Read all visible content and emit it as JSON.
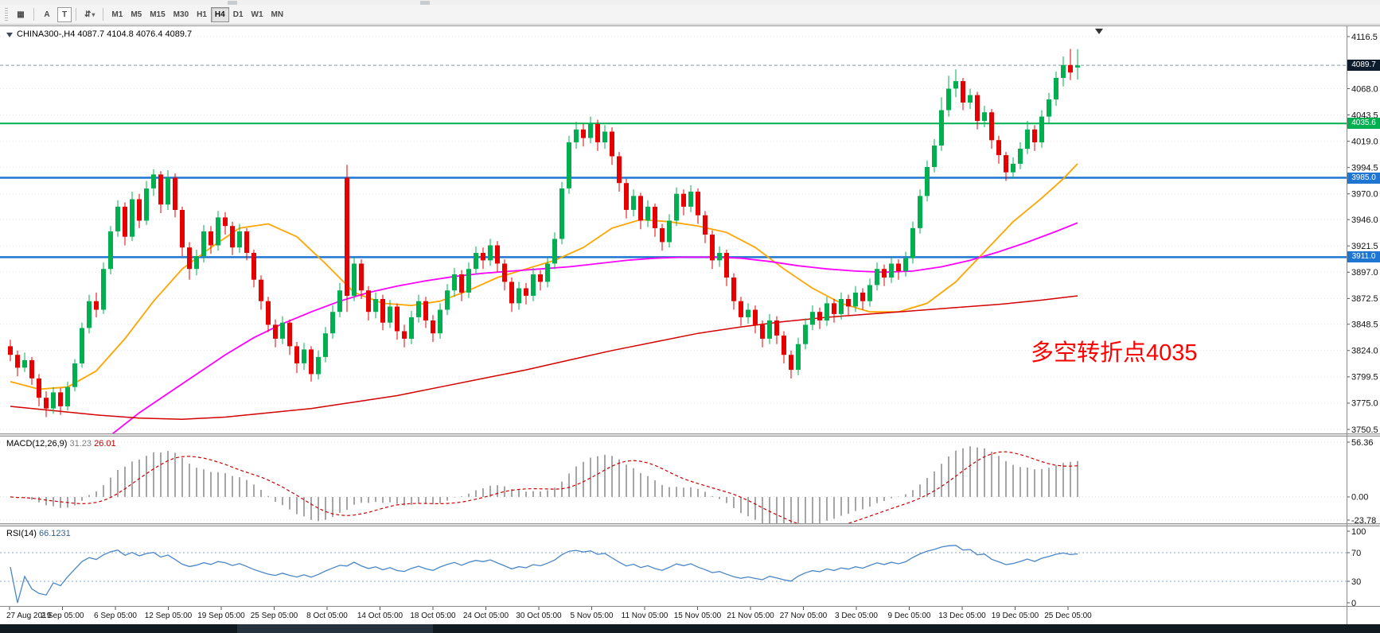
{
  "toolbar": {
    "tool_a": "A",
    "tool_t": "T",
    "timeframes": [
      "M1",
      "M5",
      "M15",
      "M30",
      "H1",
      "H4",
      "D1",
      "W1",
      "MN"
    ],
    "selected_timeframe": "H4"
  },
  "chart": {
    "symbol_period": "CHINA300-,H4",
    "ohlc": "4087.7 4104.8 4076.4 4089.7",
    "macd_name": "MACD(12,26,9)",
    "macd_main": "31.23",
    "macd_signal": "26.01",
    "rsi_name": "RSI(14)",
    "rsi_value": "66.1231",
    "badge_current": "4089.7",
    "badge_green": "4035.6",
    "badge_blue_upper": "3985.0",
    "badge_blue_lower": "3911.0",
    "annotation": "多空转折点4035"
  },
  "chart_data": {
    "type": "candlestick",
    "title": "CHINA300-,H4",
    "price_axis": {
      "ticks": [
        4116.5,
        4068.0,
        4043.5,
        4019.0,
        3994.5,
        3970.0,
        3946.0,
        3921.5,
        3897.0,
        3872.5,
        3848.5,
        3824.0,
        3799.5,
        3775.0,
        3750.5
      ],
      "current_price": 4089.7
    },
    "hlines": [
      {
        "price": 4035.6,
        "color": "#00b050",
        "width": 2,
        "name": "pivot-line-4035"
      },
      {
        "price": 3985.0,
        "color": "#1e76d2",
        "width": 2.5,
        "name": "level-line-3985"
      },
      {
        "price": 3911.0,
        "color": "#1e76d2",
        "width": 2.5,
        "name": "level-line-3911"
      }
    ],
    "colors": {
      "up": "#00b050",
      "down": "#e60000",
      "hist": "#a6a6a6",
      "signal": "#cc0000",
      "rsi": "#4a86c8",
      "rsi_level": "#88aacc",
      "grid": "#e6e6e6",
      "bid": "#8296a8"
    },
    "candles": [
      [
        3828,
        3834,
        3814,
        3820
      ],
      [
        3820,
        3824,
        3800,
        3808
      ],
      [
        3808,
        3822,
        3804,
        3815
      ],
      [
        3815,
        3818,
        3792,
        3798
      ],
      [
        3798,
        3802,
        3772,
        3780
      ],
      [
        3780,
        3786,
        3762,
        3770
      ],
      [
        3770,
        3790,
        3765,
        3785
      ],
      [
        3785,
        3789,
        3764,
        3772
      ],
      [
        3772,
        3795,
        3768,
        3790
      ],
      [
        3790,
        3816,
        3786,
        3812
      ],
      [
        3812,
        3850,
        3808,
        3845
      ],
      [
        3845,
        3876,
        3840,
        3870
      ],
      [
        3870,
        3878,
        3855,
        3862
      ],
      [
        3862,
        3906,
        3858,
        3900
      ],
      [
        3900,
        3940,
        3895,
        3935
      ],
      [
        3935,
        3964,
        3930,
        3958
      ],
      [
        3958,
        3962,
        3922,
        3930
      ],
      [
        3930,
        3972,
        3926,
        3965
      ],
      [
        3965,
        3970,
        3938,
        3945
      ],
      [
        3945,
        3982,
        3941,
        3975
      ],
      [
        3975,
        3993,
        3968,
        3988
      ],
      [
        3988,
        3991,
        3952,
        3960
      ],
      [
        3960,
        3992,
        3955,
        3985
      ],
      [
        3985,
        3989,
        3948,
        3955
      ],
      [
        3955,
        3958,
        3912,
        3920
      ],
      [
        3920,
        3925,
        3890,
        3900
      ],
      [
        3900,
        3918,
        3894,
        3912
      ],
      [
        3912,
        3941,
        3906,
        3935
      ],
      [
        3935,
        3940,
        3914,
        3922
      ],
      [
        3922,
        3954,
        3917,
        3948
      ],
      [
        3948,
        3953,
        3932,
        3940
      ],
      [
        3940,
        3944,
        3913,
        3920
      ],
      [
        3920,
        3942,
        3915,
        3935
      ],
      [
        3935,
        3938,
        3908,
        3915
      ],
      [
        3915,
        3918,
        3883,
        3890
      ],
      [
        3890,
        3894,
        3862,
        3870
      ],
      [
        3870,
        3874,
        3841,
        3848
      ],
      [
        3848,
        3853,
        3827,
        3835
      ],
      [
        3835,
        3856,
        3830,
        3850
      ],
      [
        3850,
        3853,
        3820,
        3828
      ],
      [
        3828,
        3832,
        3803,
        3812
      ],
      [
        3812,
        3831,
        3806,
        3825
      ],
      [
        3825,
        3828,
        3795,
        3802
      ],
      [
        3802,
        3824,
        3797,
        3818
      ],
      [
        3818,
        3846,
        3813,
        3840
      ],
      [
        3840,
        3866,
        3835,
        3860
      ],
      [
        3860,
        3887,
        3855,
        3880
      ],
      [
        3985,
        3997,
        3860,
        3875
      ],
      [
        3875,
        3911,
        3870,
        3905
      ],
      [
        3905,
        3909,
        3872,
        3880
      ],
      [
        3880,
        3884,
        3852,
        3860
      ],
      [
        3860,
        3878,
        3854,
        3872
      ],
      [
        3872,
        3876,
        3843,
        3850
      ],
      [
        3850,
        3871,
        3845,
        3865
      ],
      [
        3865,
        3868,
        3834,
        3842
      ],
      [
        3842,
        3848,
        3827,
        3835
      ],
      [
        3835,
        3861,
        3830,
        3855
      ],
      [
        3855,
        3876,
        3850,
        3870
      ],
      [
        3870,
        3874,
        3845,
        3852
      ],
      [
        3852,
        3857,
        3832,
        3840
      ],
      [
        3840,
        3868,
        3835,
        3862
      ],
      [
        3862,
        3886,
        3857,
        3880
      ],
      [
        3880,
        3901,
        3874,
        3895
      ],
      [
        3895,
        3899,
        3870,
        3878
      ],
      [
        3878,
        3906,
        3873,
        3900
      ],
      [
        3900,
        3921,
        3895,
        3915
      ],
      [
        3915,
        3920,
        3900,
        3908
      ],
      [
        3908,
        3928,
        3903,
        3922
      ],
      [
        3922,
        3926,
        3897,
        3905
      ],
      [
        3905,
        3909,
        3880,
        3888
      ],
      [
        3888,
        3892,
        3860,
        3868
      ],
      [
        3868,
        3888,
        3862,
        3882
      ],
      [
        3882,
        3887,
        3867,
        3875
      ],
      [
        3875,
        3901,
        3870,
        3895
      ],
      [
        3895,
        3899,
        3880,
        3888
      ],
      [
        3888,
        3911,
        3883,
        3905
      ],
      [
        3905,
        3934,
        3900,
        3928
      ],
      [
        3928,
        3981,
        3923,
        3975
      ],
      [
        3975,
        4024,
        3970,
        4018
      ],
      [
        4018,
        4037,
        4012,
        4030
      ],
      [
        4030,
        4035,
        4014,
        4022
      ],
      [
        4022,
        4042,
        4017,
        4035
      ],
      [
        4035,
        4039,
        4010,
        4018
      ],
      [
        4018,
        4034,
        4012,
        4028
      ],
      [
        4028,
        4032,
        3997,
        4005
      ],
      [
        4005,
        4009,
        3972,
        3980
      ],
      [
        3980,
        3984,
        3947,
        3955
      ],
      [
        3955,
        3974,
        3949,
        3968
      ],
      [
        3968,
        3971,
        3937,
        3945
      ],
      [
        3945,
        3964,
        3939,
        3958
      ],
      [
        3958,
        3961,
        3930,
        3938
      ],
      [
        3938,
        3942,
        3917,
        3925
      ],
      [
        3925,
        3951,
        3920,
        3945
      ],
      [
        3945,
        3976,
        3940,
        3970
      ],
      [
        3970,
        3974,
        3950,
        3958
      ],
      [
        3958,
        3978,
        3953,
        3972
      ],
      [
        3972,
        3975,
        3942,
        3950
      ],
      [
        3950,
        3954,
        3924,
        3932
      ],
      [
        3932,
        3936,
        3900,
        3908
      ],
      [
        3908,
        3921,
        3902,
        3915
      ],
      [
        3915,
        3918,
        3884,
        3892
      ],
      [
        3892,
        3896,
        3862,
        3870
      ],
      [
        3870,
        3874,
        3847,
        3855
      ],
      [
        3855,
        3868,
        3849,
        3862
      ],
      [
        3862,
        3866,
        3840,
        3848
      ],
      [
        3848,
        3852,
        3827,
        3835
      ],
      [
        3835,
        3858,
        3830,
        3852
      ],
      [
        3852,
        3856,
        3830,
        3838
      ],
      [
        3838,
        3842,
        3812,
        3820
      ],
      [
        3820,
        3824,
        3798,
        3806
      ],
      [
        3806,
        3836,
        3801,
        3830
      ],
      [
        3830,
        3854,
        3825,
        3848
      ],
      [
        3848,
        3866,
        3843,
        3860
      ],
      [
        3860,
        3864,
        3844,
        3852
      ],
      [
        3852,
        3874,
        3847,
        3868
      ],
      [
        3868,
        3872,
        3850,
        3858
      ],
      [
        3858,
        3878,
        3853,
        3872
      ],
      [
        3872,
        3876,
        3857,
        3865
      ],
      [
        3865,
        3884,
        3860,
        3878
      ],
      [
        3878,
        3882,
        3862,
        3870
      ],
      [
        3870,
        3891,
        3865,
        3885
      ],
      [
        3885,
        3906,
        3880,
        3900
      ],
      [
        3900,
        3904,
        3884,
        3892
      ],
      [
        3892,
        3911,
        3887,
        3905
      ],
      [
        3905,
        3909,
        3890,
        3898
      ],
      [
        3898,
        3916,
        3893,
        3910
      ],
      [
        3910,
        3944,
        3905,
        3938
      ],
      [
        3938,
        3974,
        3933,
        3968
      ],
      [
        3968,
        4001,
        3963,
        3995
      ],
      [
        3995,
        4021,
        3990,
        4015
      ],
      [
        4015,
        4060,
        4010,
        4048
      ],
      [
        4048,
        4080,
        4042,
        4068
      ],
      [
        4068,
        4086,
        4060,
        4075
      ],
      [
        4075,
        4078,
        4048,
        4055
      ],
      [
        4055,
        4068,
        4049,
        4062
      ],
      [
        4062,
        4065,
        4030,
        4038
      ],
      [
        4038,
        4052,
        4032,
        4046
      ],
      [
        4046,
        4049,
        4012,
        4020
      ],
      [
        4020,
        4024,
        3998,
        4006
      ],
      [
        4006,
        4009,
        3982,
        3990
      ],
      [
        3990,
        4004,
        3984,
        3998
      ],
      [
        3998,
        4018,
        3993,
        4012
      ],
      [
        4012,
        4038,
        4007,
        4030
      ],
      [
        4030,
        4034,
        4010,
        4018
      ],
      [
        4018,
        4048,
        4013,
        4042
      ],
      [
        4042,
        4064,
        4036,
        4058
      ],
      [
        4058,
        4084,
        4052,
        4078
      ],
      [
        4078,
        4098,
        4070,
        4090
      ],
      [
        4090,
        4105,
        4076,
        4083
      ],
      [
        4087.7,
        4104.8,
        4076.4,
        4089.7
      ]
    ],
    "ma_lines": [
      {
        "name": "ma-fast-orange",
        "color": "#ffa500",
        "width": 1.8,
        "points": [
          [
            0,
            3795
          ],
          [
            4,
            3788
          ],
          [
            8,
            3790
          ],
          [
            12,
            3805
          ],
          [
            16,
            3835
          ],
          [
            20,
            3870
          ],
          [
            24,
            3900
          ],
          [
            28,
            3920
          ],
          [
            32,
            3938
          ],
          [
            36,
            3942
          ],
          [
            40,
            3930
          ],
          [
            44,
            3905
          ],
          [
            48,
            3878
          ],
          [
            52,
            3868
          ],
          [
            56,
            3866
          ],
          [
            60,
            3870
          ],
          [
            64,
            3880
          ],
          [
            68,
            3892
          ],
          [
            72,
            3900
          ],
          [
            76,
            3908
          ],
          [
            80,
            3920
          ],
          [
            84,
            3938
          ],
          [
            88,
            3946
          ],
          [
            92,
            3944
          ],
          [
            96,
            3940
          ],
          [
            100,
            3934
          ],
          [
            104,
            3920
          ],
          [
            108,
            3900
          ],
          [
            112,
            3882
          ],
          [
            116,
            3868
          ],
          [
            120,
            3860
          ],
          [
            124,
            3860
          ],
          [
            128,
            3868
          ],
          [
            132,
            3888
          ],
          [
            136,
            3916
          ],
          [
            140,
            3944
          ],
          [
            144,
            3966
          ],
          [
            147,
            3984
          ],
          [
            149,
            3998
          ]
        ]
      },
      {
        "name": "ma-mid-magenta",
        "color": "#ff00ff",
        "width": 1.8,
        "points": [
          [
            12,
            3726
          ],
          [
            14,
            3745
          ],
          [
            18,
            3766
          ],
          [
            22,
            3784
          ],
          [
            26,
            3802
          ],
          [
            30,
            3820
          ],
          [
            34,
            3836
          ],
          [
            38,
            3849
          ],
          [
            42,
            3860
          ],
          [
            46,
            3870
          ],
          [
            50,
            3878
          ],
          [
            54,
            3884
          ],
          [
            58,
            3889
          ],
          [
            62,
            3893
          ],
          [
            66,
            3896
          ],
          [
            70,
            3898
          ],
          [
            74,
            3900
          ],
          [
            78,
            3902
          ],
          [
            82,
            3905
          ],
          [
            86,
            3908
          ],
          [
            90,
            3910
          ],
          [
            94,
            3911
          ],
          [
            98,
            3911
          ],
          [
            102,
            3910
          ],
          [
            106,
            3907
          ],
          [
            110,
            3903
          ],
          [
            114,
            3900
          ],
          [
            118,
            3898
          ],
          [
            122,
            3897
          ],
          [
            126,
            3898
          ],
          [
            130,
            3902
          ],
          [
            134,
            3908
          ],
          [
            138,
            3916
          ],
          [
            142,
            3925
          ],
          [
            146,
            3935
          ],
          [
            149,
            3943
          ]
        ]
      },
      {
        "name": "ma-slow-red",
        "color": "#d40000",
        "width": 1.5,
        "points": [
          [
            0,
            3772
          ],
          [
            6,
            3768
          ],
          [
            12,
            3764
          ],
          [
            18,
            3761
          ],
          [
            24,
            3760
          ],
          [
            30,
            3762
          ],
          [
            36,
            3766
          ],
          [
            42,
            3770
          ],
          [
            48,
            3776
          ],
          [
            54,
            3782
          ],
          [
            60,
            3790
          ],
          [
            66,
            3798
          ],
          [
            72,
            3806
          ],
          [
            78,
            3815
          ],
          [
            84,
            3824
          ],
          [
            90,
            3832
          ],
          [
            96,
            3840
          ],
          [
            102,
            3846
          ],
          [
            108,
            3851
          ],
          [
            114,
            3855
          ],
          [
            120,
            3858
          ],
          [
            126,
            3861
          ],
          [
            132,
            3864
          ],
          [
            138,
            3867
          ],
          [
            144,
            3871
          ],
          [
            149,
            3875
          ]
        ]
      }
    ],
    "macd": {
      "name": "MACD(12,26,9)",
      "ticks": [
        56.36,
        0,
        -23.78
      ]
    },
    "rsi": {
      "name": "RSI(14)",
      "ticks": [
        100,
        70,
        30,
        0
      ],
      "levels": [
        70,
        30
      ]
    },
    "time_axis": [
      "27 Aug 2019",
      "2 Sep 05:00",
      "6 Sep 05:00",
      "12 Sep 05:00",
      "19 Sep 05:00",
      "25 Sep 05:00",
      "8 Oct 05:00",
      "14 Oct 05:00",
      "18 Oct 05:00",
      "24 Oct 05:00",
      "30 Oct 05:00",
      "5 Nov 05:00",
      "11 Nov 05:00",
      "15 Nov 05:00",
      "21 Nov 05:00",
      "27 Nov 05:00",
      "3 Dec 05:00",
      "9 Dec 05:00",
      "13 Dec 05:00",
      "19 Dec 05:00",
      "25 Dec 05:00"
    ],
    "annotation": {
      "text": "多空转折点4035",
      "color": "#ff0000"
    }
  }
}
